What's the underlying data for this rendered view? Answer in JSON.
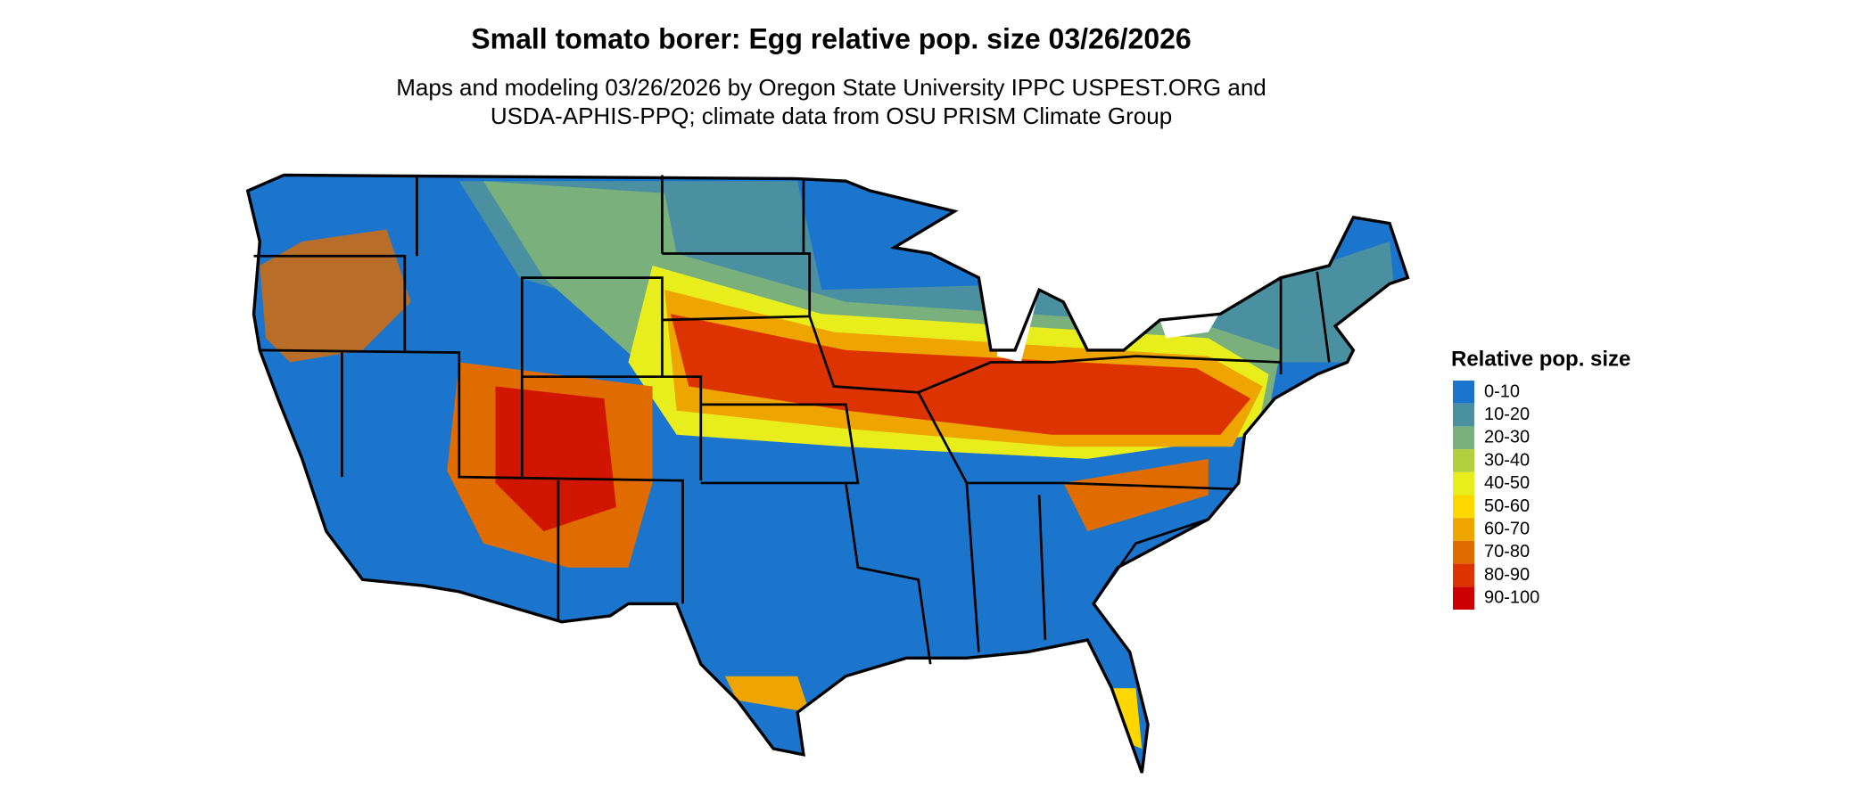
{
  "title": "Small tomato borer: Egg relative pop. size 03/26/2026",
  "subtitle": [
    "Maps and modeling 03/26/2026 by Oregon State University IPPC USPEST.ORG and",
    "USDA-APHIS-PPQ; climate data from OSU PRISM Climate Group"
  ],
  "legend": {
    "title": "Relative pop. size",
    "items": [
      {
        "label": "0-10",
        "color": "#1c75cd"
      },
      {
        "label": "10-20",
        "color": "#4a90a0"
      },
      {
        "label": "20-30",
        "color": "#79b07c"
      },
      {
        "label": "30-40",
        "color": "#b2d03e"
      },
      {
        "label": "40-50",
        "color": "#e8ee1c"
      },
      {
        "label": "50-60",
        "color": "#ffd700"
      },
      {
        "label": "60-70",
        "color": "#eea500"
      },
      {
        "label": "70-80",
        "color": "#e06c00"
      },
      {
        "label": "80-90",
        "color": "#dd3300"
      },
      {
        "label": "90-100",
        "color": "#cc0000"
      }
    ]
  }
}
